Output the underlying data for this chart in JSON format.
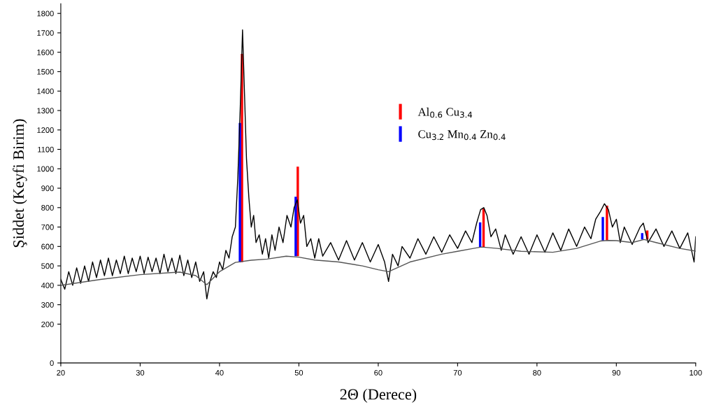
{
  "chart_data": {
    "type": "line",
    "xlabel": "2Θ (Derece)",
    "ylabel": "Şiddet (Keyfi Birim)",
    "xlim": [
      20,
      100
    ],
    "xticks": [
      20,
      30,
      40,
      50,
      60,
      70,
      80,
      90,
      100
    ],
    "ylim": [
      0,
      1850
    ],
    "yticks": [
      0,
      200,
      300,
      400,
      500,
      600,
      700,
      800,
      900,
      1000,
      1100,
      1200,
      1300,
      1400,
      1500,
      1600,
      1700,
      1800
    ],
    "grid": false,
    "legend": "top",
    "marker": "none",
    "line_style": "solid",
    "series": [
      {
        "color": "#000000",
        "x": [
          20,
          20.5,
          21,
          21.5,
          22,
          22.5,
          23,
          23.5,
          24,
          24.5,
          25,
          25.5,
          26,
          26.5,
          27,
          27.5,
          28,
          28.5,
          29,
          29.5,
          30,
          30.5,
          31,
          31.5,
          32,
          32.5,
          33,
          33.5,
          34,
          34.5,
          35,
          35.5,
          36,
          36.5,
          37,
          37.5,
          38,
          38.4,
          38.8,
          39.2,
          39.6,
          40,
          40.4,
          40.8,
          41.2,
          41.6,
          42,
          42.3,
          42.6,
          42.9,
          43.1,
          43.4,
          43.7,
          44,
          44.3,
          44.6,
          45,
          45.4,
          45.8,
          46.2,
          46.6,
          47,
          47.5,
          48,
          48.5,
          49,
          49.4,
          49.8,
          50.2,
          50.6,
          51,
          51.5,
          52,
          52.5,
          53,
          54,
          55,
          56,
          57,
          58,
          59,
          60,
          60.8,
          61.3,
          61.8,
          62.5,
          63,
          64,
          65,
          66,
          67,
          68,
          69,
          70,
          71,
          71.8,
          72.4,
          72.9,
          73.3,
          73.7,
          74.2,
          74.8,
          75.5,
          76,
          77,
          78,
          79,
          80,
          81,
          82,
          83,
          84,
          85,
          86,
          86.8,
          87.4,
          88,
          88.5,
          89,
          89.5,
          90,
          90.5,
          91,
          92,
          93,
          93.4,
          94,
          95,
          96,
          97,
          98,
          99,
          99.8,
          100
        ],
        "values": [
          430,
          380,
          470,
          400,
          490,
          410,
          500,
          420,
          520,
          440,
          530,
          450,
          540,
          450,
          530,
          460,
          550,
          460,
          540,
          470,
          550,
          460,
          545,
          470,
          540,
          460,
          560,
          470,
          540,
          460,
          555,
          450,
          530,
          440,
          520,
          420,
          470,
          330,
          420,
          470,
          440,
          520,
          480,
          580,
          540,
          650,
          700,
          950,
          1300,
          1715,
          1450,
          1050,
          850,
          700,
          760,
          620,
          660,
          560,
          640,
          540,
          660,
          580,
          700,
          620,
          760,
          700,
          800,
          840,
          720,
          760,
          600,
          640,
          540,
          640,
          550,
          620,
          530,
          630,
          530,
          620,
          520,
          610,
          520,
          420,
          560,
          500,
          600,
          540,
          640,
          560,
          650,
          570,
          660,
          590,
          680,
          620,
          720,
          790,
          800,
          760,
          650,
          690,
          580,
          660,
          560,
          650,
          560,
          660,
          570,
          670,
          580,
          690,
          600,
          700,
          640,
          740,
          780,
          820,
          790,
          700,
          740,
          620,
          700,
          610,
          700,
          720,
          620,
          690,
          600,
          680,
          590,
          670,
          520,
          650
        ]
      },
      {
        "type": "line",
        "color": "#555555",
        "x": [
          20,
          25,
          30,
          35,
          37,
          38.4,
          40,
          42,
          44,
          46,
          48.4,
          50,
          52,
          55,
          58,
          60,
          61.3,
          64,
          68,
          70,
          72,
          73,
          75,
          78,
          82,
          85,
          88,
          89,
          90,
          92,
          93.5,
          95,
          98,
          100
        ],
        "values": [
          400,
          430,
          455,
          468,
          450,
          403,
          470,
          518,
          529,
          535,
          550,
          545,
          530,
          520,
          500,
          480,
          470,
          520,
          560,
          575,
          590,
          597,
          590,
          575,
          570,
          590,
          628,
          631,
          630,
          620,
          636,
          620,
          590,
          576
        ]
      },
      {
        "type": "bar",
        "name": "Al$_{0.6}$ Cu$_{3.4}$",
        "color": "#ff0000",
        "x": [
          42.83,
          49.86,
          73.27,
          88.82,
          93.9
        ],
        "base": [
          519,
          550,
          597,
          631,
          636
        ],
        "values": [
          1073,
          461,
          198,
          179,
          46
        ]
      },
      {
        "type": "bar",
        "name": "Cu$_{3.2}$ Mn$_{0.4}$ Zn$_{0.4}$",
        "color": "#0000ff",
        "x": [
          42.57,
          49.6,
          72.84,
          88.3,
          93.26
        ],
        "base": [
          518,
          550,
          597,
          631,
          636
        ],
        "values": [
          718,
          306,
          127,
          121,
          33
        ]
      }
    ]
  }
}
